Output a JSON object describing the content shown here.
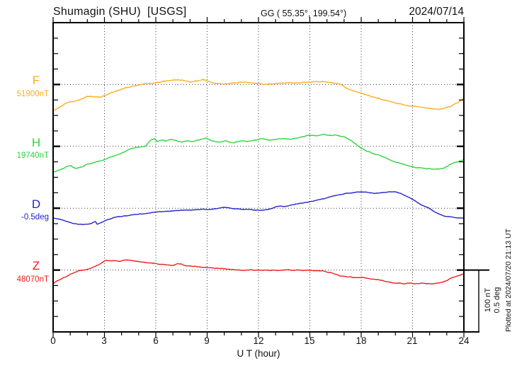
{
  "header": {
    "station": "Shumagin (SHU)  [USGS]",
    "coords": "GG ( 55.35°, 199.54°)",
    "date": "2024/07/14"
  },
  "axis": {
    "xlabel": "U T (hour)",
    "xticks": [
      "0",
      "3",
      "6",
      "9",
      "12",
      "15",
      "18",
      "21",
      "24"
    ]
  },
  "channels": [
    {
      "letter": "F",
      "value_label": "51900nT",
      "color": "#ffac1c"
    },
    {
      "letter": "H",
      "value_label": "19740nT",
      "color": "#2cd43c"
    },
    {
      "letter": "D",
      "value_label": "-0.5deg",
      "color": "#2222cc"
    },
    {
      "letter": "Z",
      "value_label": "48070nT",
      "color": "#ee1c1c"
    }
  ],
  "scale_bar": {
    "line1": "100 nT",
    "line2": "0.5 deg"
  },
  "footer_note": "Plotted at 2024/07/20 21:13 UT",
  "colors": {
    "frame": "#000000",
    "grid_dots": "#3c3c3c",
    "background": "#ffffff"
  },
  "chart_data": {
    "type": "line",
    "title": "Shumagin (SHU) [USGS] magnetogram",
    "date": "2024/07/14",
    "xlabel": "U T (hour)",
    "xlim": [
      0,
      24
    ],
    "xtick_major_hours": 3,
    "xtick_minor_hours": 1,
    "grid": "dotted vertical lines every 3 h; dotted horizontal baseline per channel",
    "legend_position": "left margin channel labels",
    "scale": {
      "nT_per_division": 100,
      "deg_per_division": 0.5
    },
    "series": [
      {
        "name": "F",
        "units": "nT",
        "baseline_value": 51900,
        "color": "#ffac1c",
        "hours": [
          0.0,
          0.41,
          0.83,
          1.24,
          1.57,
          1.99,
          2.4,
          2.81,
          3.52,
          4.22,
          5.05,
          5.59,
          6.0,
          6.7,
          7.12,
          7.53,
          7.99,
          8.48,
          8.77,
          9.19,
          9.52,
          10.01,
          10.55,
          11.17,
          11.79,
          12.41,
          13.03,
          13.66,
          14.28,
          14.98,
          15.72,
          16.34,
          16.76,
          17.17,
          18.0,
          18.83,
          19.45,
          19.94,
          20.48,
          21.02,
          21.85,
          22.34,
          22.67,
          23.25,
          23.66,
          24.0
        ],
        "offsets": [
          -41.9,
          -36.2,
          -29.3,
          -27.0,
          -24.7,
          -19.0,
          -20.1,
          -20.1,
          -12.1,
          -5.3,
          -0.7,
          1.6,
          2.7,
          6.2,
          7.3,
          7.3,
          3.9,
          6.2,
          8.5,
          3.9,
          1.6,
          0.5,
          2.7,
          3.9,
          1.6,
          0.5,
          1.6,
          2.7,
          2.7,
          3.9,
          5.0,
          2.7,
          0.5,
          -6.4,
          -14.4,
          -21.3,
          -25.9,
          -29.3,
          -32.7,
          -35.0,
          -38.4,
          -39.6,
          -39.6,
          -35.0,
          -29.3,
          -22.4
        ]
      },
      {
        "name": "H",
        "units": "nT",
        "baseline_value": 19740,
        "color": "#2cd43c",
        "hours": [
          0.0,
          0.41,
          0.83,
          1.03,
          1.32,
          1.66,
          1.99,
          2.4,
          2.81,
          3.23,
          3.72,
          4.14,
          4.55,
          4.97,
          5.38,
          5.71,
          5.92,
          6.08,
          6.33,
          6.62,
          6.95,
          7.24,
          7.53,
          7.86,
          8.15,
          8.48,
          8.9,
          9.31,
          9.72,
          10.06,
          10.55,
          10.97,
          11.38,
          11.79,
          12.21,
          12.62,
          13.03,
          13.45,
          13.86,
          14.28,
          14.69,
          14.98,
          15.39,
          15.72,
          16.14,
          16.55,
          16.97,
          17.3,
          17.59,
          17.92,
          18.21,
          18.7,
          19.03,
          19.45,
          19.78,
          20.28,
          20.9,
          21.31,
          21.72,
          22.14,
          22.55,
          22.88,
          23.25,
          23.59,
          23.88,
          24.0
        ],
        "offsets": [
          -41.4,
          -38.0,
          -32.3,
          -31.1,
          -35.7,
          -33.4,
          -28.8,
          -26.5,
          -23.1,
          -18.5,
          -14.0,
          -9.4,
          -3.7,
          -1.4,
          -0.2,
          10.1,
          12.4,
          7.8,
          10.1,
          8.9,
          11.2,
          8.9,
          6.6,
          8.9,
          7.8,
          10.1,
          13.5,
          8.9,
          6.6,
          8.9,
          5.5,
          8.9,
          7.8,
          10.1,
          12.4,
          10.1,
          11.2,
          12.4,
          11.2,
          13.5,
          15.8,
          18.1,
          16.9,
          19.2,
          18.1,
          18.1,
          15.8,
          11.2,
          5.5,
          -1.4,
          -5.9,
          -11.7,
          -14.0,
          -18.5,
          -23.1,
          -27.7,
          -32.3,
          -34.6,
          -35.7,
          -36.8,
          -36.8,
          -34.6,
          -28.8,
          -25.4,
          -23.1,
          -20.8
        ]
      },
      {
        "name": "D",
        "units": "deg",
        "baseline_value": -0.5,
        "color": "#2222cc",
        "hours": [
          0.0,
          0.41,
          0.83,
          1.24,
          1.53,
          1.86,
          2.19,
          2.36,
          2.48,
          2.57,
          2.77,
          3.1,
          3.64,
          4.22,
          4.76,
          5.3,
          5.88,
          6.41,
          6.95,
          7.53,
          8.07,
          8.61,
          9.19,
          9.72,
          10.01,
          10.34,
          10.68,
          11.05,
          11.46,
          11.88,
          12.29,
          12.7,
          13.03,
          13.28,
          13.53,
          13.86,
          14.28,
          14.81,
          15.39,
          15.93,
          16.34,
          16.76,
          17.17,
          17.59,
          18.0,
          18.41,
          18.7,
          18.99,
          19.28,
          19.61,
          19.94,
          20.28,
          20.69,
          21.02,
          21.27,
          21.47,
          21.68,
          21.89,
          22.14,
          22.43,
          22.72,
          22.97,
          23.38,
          23.71,
          24.0
        ],
        "offsets": [
          -0.079,
          -0.09,
          -0.108,
          -0.125,
          -0.13,
          -0.13,
          -0.125,
          -0.113,
          -0.108,
          -0.13,
          -0.119,
          -0.096,
          -0.073,
          -0.062,
          -0.05,
          -0.045,
          -0.033,
          -0.027,
          -0.022,
          -0.016,
          -0.016,
          -0.01,
          -0.01,
          0.001,
          0.007,
          0.001,
          -0.005,
          -0.01,
          -0.01,
          -0.016,
          -0.016,
          -0.005,
          0.013,
          0.018,
          0.013,
          0.024,
          0.035,
          0.047,
          0.064,
          0.081,
          0.098,
          0.11,
          0.121,
          0.127,
          0.133,
          0.127,
          0.121,
          0.121,
          0.127,
          0.133,
          0.133,
          0.121,
          0.093,
          0.07,
          0.047,
          0.03,
          0.018,
          0.007,
          -0.016,
          -0.039,
          -0.056,
          -0.067,
          -0.073,
          -0.079,
          -0.079
        ]
      },
      {
        "name": "Z",
        "units": "nT",
        "baseline_value": 48070,
        "color": "#ee1c1c",
        "hours": [
          0.0,
          0.21,
          0.41,
          0.62,
          0.83,
          1.03,
          1.24,
          1.45,
          1.61,
          1.78,
          1.99,
          2.11,
          2.27,
          2.44,
          2.61,
          2.77,
          2.9,
          3.02,
          3.18,
          3.35,
          3.52,
          3.72,
          3.85,
          3.97,
          4.1,
          4.22,
          4.35,
          4.51,
          4.68,
          4.84,
          4.97,
          5.17,
          5.42,
          5.63,
          5.83,
          6.04,
          6.29,
          6.54,
          6.79,
          7.03,
          7.28,
          7.49,
          7.74,
          8.07,
          8.4,
          8.65,
          8.98,
          9.31,
          9.77,
          10.06,
          10.3,
          10.59,
          10.88,
          11.21,
          11.5,
          11.71,
          11.96,
          12.25,
          12.62,
          13.03,
          13.45,
          13.78,
          14.03,
          14.23,
          14.52,
          14.81,
          15.19,
          15.52,
          15.81,
          16.14,
          16.43,
          16.76,
          17.17,
          17.59,
          18.0,
          18.29,
          18.54,
          18.83,
          19.12,
          19.45,
          19.74,
          19.94,
          20.28,
          20.57,
          20.81,
          21.06,
          21.35,
          21.6,
          21.85,
          22.14,
          22.43,
          22.67,
          22.97,
          23.25,
          23.5,
          23.79,
          24.0
        ],
        "offsets": [
          -22.2,
          -17.6,
          -15.3,
          -11.9,
          -9.6,
          -6.2,
          -3.9,
          -1.6,
          -0.5,
          0.1,
          1.2,
          1.8,
          3.8,
          5.8,
          8.1,
          10.4,
          12.7,
          15.0,
          15.3,
          15.0,
          15.3,
          15.0,
          13.8,
          14.4,
          15.9,
          16.2,
          16.4,
          15.6,
          15.0,
          14.4,
          13.8,
          13.0,
          12.1,
          11.5,
          11.0,
          10.4,
          9.2,
          8.7,
          8.1,
          7.6,
          10.4,
          9.8,
          7.0,
          6.4,
          5.3,
          4.7,
          4.1,
          3.5,
          2.4,
          1.8,
          1.3,
          0.7,
          0.1,
          -0.5,
          0.3,
          -0.3,
          0.1,
          -0.5,
          -0.5,
          -0.5,
          0.1,
          0.7,
          -0.5,
          0.1,
          -0.5,
          -0.5,
          -1.0,
          -1.0,
          -1.6,
          -3.9,
          -6.2,
          -9.6,
          -10.8,
          -11.9,
          -11.9,
          -13.0,
          -14.2,
          -15.3,
          -16.5,
          -18.8,
          -19.9,
          -21.1,
          -21.1,
          -22.2,
          -21.1,
          -22.2,
          -22.2,
          -21.1,
          -22.2,
          -22.2,
          -21.1,
          -19.9,
          -17.6,
          -13.0,
          -10.8,
          -8.5,
          -6.2
        ]
      }
    ]
  }
}
